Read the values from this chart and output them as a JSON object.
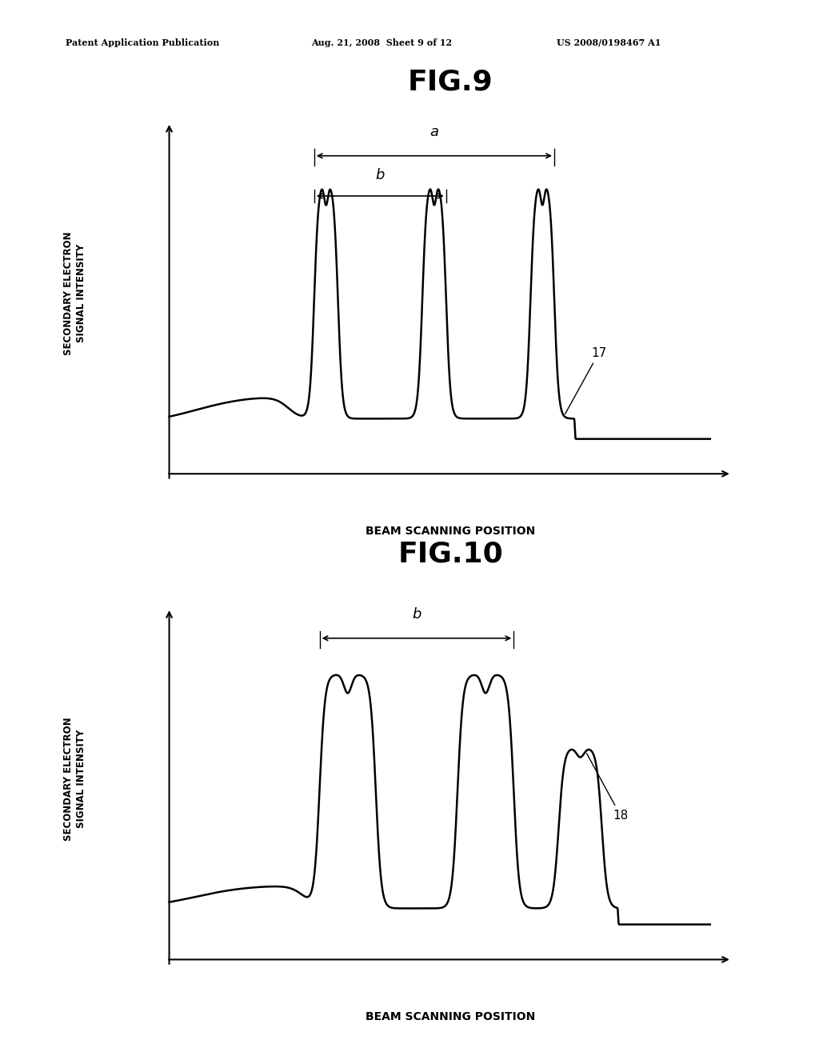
{
  "background_color": "#ffffff",
  "header_line1": "Patent Application Publication",
  "header_line2": "Aug. 21, 2008  Sheet 9 of 12",
  "header_line3": "US 2008/0198467 A1",
  "fig9_title": "FIG.9",
  "fig10_title": "FIG.10",
  "ylabel": "SECONDARY ELECTRON\nSIGNAL INTENSITY",
  "xlabel": "BEAM SCANNING POSITION",
  "label17": "17",
  "label18": "18",
  "annotation_a": "a",
  "annotation_b": "b"
}
